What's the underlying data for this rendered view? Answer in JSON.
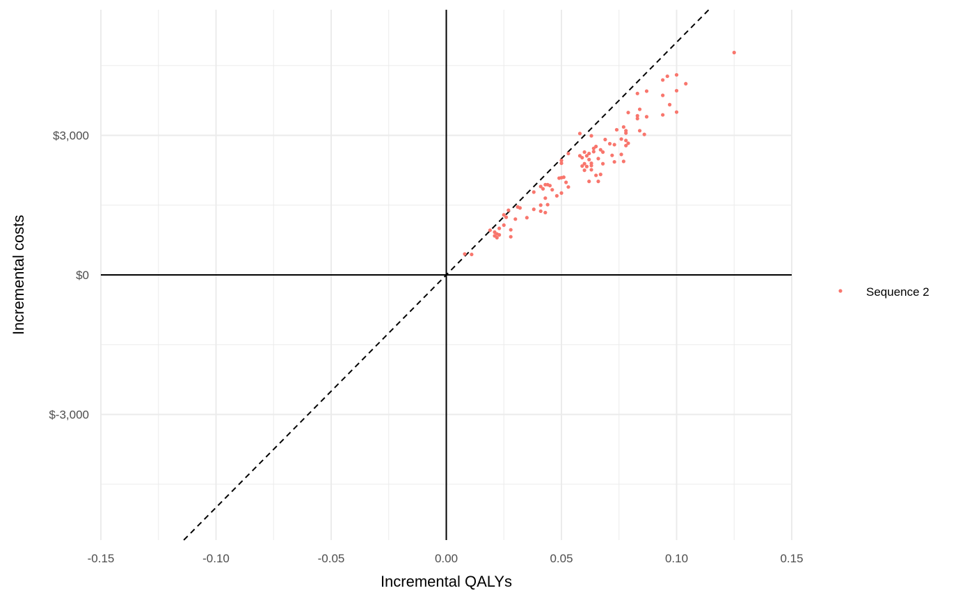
{
  "chart_data": {
    "type": "scatter",
    "title": "",
    "xlabel": "Incremental QALYs",
    "ylabel": "Incremental costs",
    "xlim": [
      -0.15,
      0.15
    ],
    "ylim": [
      -5700,
      5700
    ],
    "x_ticks": [
      -0.15,
      -0.1,
      -0.05,
      0.0,
      0.05,
      0.1,
      0.15
    ],
    "x_tick_labels": [
      "-0.15",
      "-0.10",
      "-0.05",
      "0.00",
      "0.05",
      "0.10",
      "0.15"
    ],
    "y_ticks": [
      -3000,
      0,
      3000
    ],
    "y_tick_labels": [
      "$-3,000",
      "$0",
      "$3,000"
    ],
    "y_minor_ticks": [
      -4500,
      -1500,
      1500,
      4500
    ],
    "x_minor_ticks": [
      -0.125,
      -0.075,
      -0.025,
      0.025,
      0.075,
      0.125
    ],
    "grid": true,
    "reference_axes": {
      "x": 0,
      "y": 0
    },
    "threshold_line": {
      "style": "dashed",
      "slope_per_qaly": 50000
    },
    "legend": {
      "position": "right"
    },
    "series": [
      {
        "name": "Sequence 2",
        "color": "#F8766D",
        "points": [
          [
            0.125,
            4780
          ],
          [
            0.1,
            4300
          ],
          [
            0.096,
            4270
          ],
          [
            0.094,
            4190
          ],
          [
            0.104,
            4110
          ],
          [
            0.1,
            3960
          ],
          [
            0.087,
            3950
          ],
          [
            0.083,
            3900
          ],
          [
            0.094,
            3860
          ],
          [
            0.097,
            3660
          ],
          [
            0.084,
            3560
          ],
          [
            0.1,
            3500
          ],
          [
            0.079,
            3490
          ],
          [
            0.083,
            3420
          ],
          [
            0.094,
            3440
          ],
          [
            0.087,
            3400
          ],
          [
            0.083,
            3360
          ],
          [
            0.077,
            3180
          ],
          [
            0.074,
            3120
          ],
          [
            0.078,
            3100
          ],
          [
            0.084,
            3100
          ],
          [
            0.058,
            3040
          ],
          [
            0.078,
            3050
          ],
          [
            0.086,
            3020
          ],
          [
            0.063,
            2990
          ],
          [
            0.076,
            2920
          ],
          [
            0.069,
            2910
          ],
          [
            0.078,
            2890
          ],
          [
            0.073,
            2800
          ],
          [
            0.079,
            2830
          ],
          [
            0.071,
            2820
          ],
          [
            0.078,
            2780
          ],
          [
            0.065,
            2760
          ],
          [
            0.064,
            2720
          ],
          [
            0.067,
            2690
          ],
          [
            0.064,
            2650
          ],
          [
            0.068,
            2640
          ],
          [
            0.06,
            2640
          ],
          [
            0.058,
            2560
          ],
          [
            0.062,
            2610
          ],
          [
            0.053,
            2610
          ],
          [
            0.076,
            2590
          ],
          [
            0.072,
            2570
          ],
          [
            0.061,
            2560
          ],
          [
            0.066,
            2500
          ],
          [
            0.059,
            2520
          ],
          [
            0.062,
            2480
          ],
          [
            0.05,
            2460
          ],
          [
            0.06,
            2390
          ],
          [
            0.068,
            2390
          ],
          [
            0.073,
            2430
          ],
          [
            0.077,
            2440
          ],
          [
            0.063,
            2400
          ],
          [
            0.05,
            2400
          ],
          [
            0.063,
            2350
          ],
          [
            0.059,
            2340
          ],
          [
            0.061,
            2330
          ],
          [
            0.06,
            2250
          ],
          [
            0.063,
            2260
          ],
          [
            0.067,
            2160
          ],
          [
            0.065,
            2140
          ],
          [
            0.051,
            2100
          ],
          [
            0.049,
            2080
          ],
          [
            0.05,
            2090
          ],
          [
            0.062,
            2010
          ],
          [
            0.066,
            2010
          ],
          [
            0.052,
            1990
          ],
          [
            0.044,
            1940
          ],
          [
            0.043,
            1940
          ],
          [
            0.045,
            1920
          ],
          [
            0.041,
            1900
          ],
          [
            0.053,
            1890
          ],
          [
            0.042,
            1850
          ],
          [
            0.046,
            1830
          ],
          [
            0.038,
            1780
          ],
          [
            0.05,
            1760
          ],
          [
            0.048,
            1700
          ],
          [
            0.043,
            1650
          ],
          [
            0.044,
            1510
          ],
          [
            0.041,
            1500
          ],
          [
            0.031,
            1460
          ],
          [
            0.032,
            1440
          ],
          [
            0.038,
            1410
          ],
          [
            0.027,
            1390
          ],
          [
            0.041,
            1370
          ],
          [
            0.043,
            1340
          ],
          [
            0.025,
            1290
          ],
          [
            0.026,
            1240
          ],
          [
            0.035,
            1230
          ],
          [
            0.03,
            1200
          ],
          [
            0.025,
            1070
          ],
          [
            0.023,
            1000
          ],
          [
            0.028,
            970
          ],
          [
            0.019,
            960
          ],
          [
            0.021,
            920
          ],
          [
            0.022,
            880
          ],
          [
            0.021,
            840
          ],
          [
            0.023,
            860
          ],
          [
            0.022,
            800
          ],
          [
            0.028,
            820
          ],
          [
            0.008,
            450
          ],
          [
            0.011,
            440
          ]
        ]
      }
    ]
  }
}
